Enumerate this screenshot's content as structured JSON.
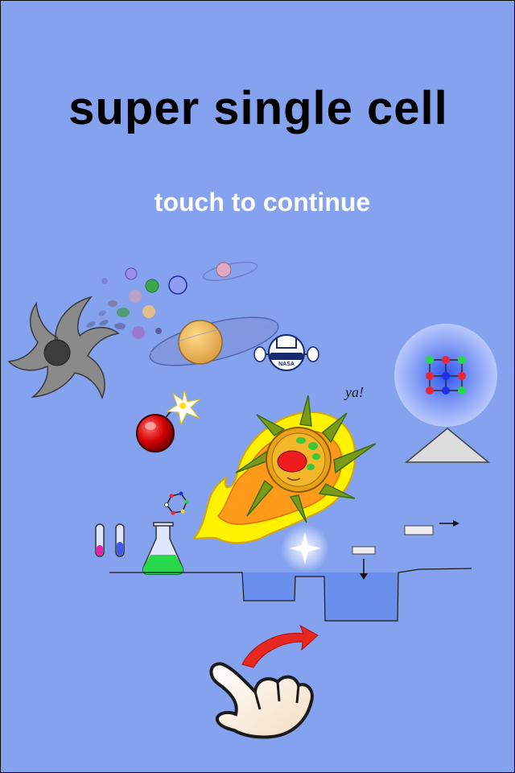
{
  "title": "super single cell",
  "prompt": "touch to continue",
  "labels": {
    "shout": "ya!",
    "agency": "NASA"
  },
  "icons": {
    "galaxy": "spiral-galaxy-icon",
    "planet": "ringed-planet-icon",
    "satellite": "satellite-icon",
    "bomb": "bomb-icon",
    "cell": "flaming-cell-icon",
    "molecule": "benzene-molecule-icon",
    "lattice": "crystal-lattice-icon",
    "prism": "triangle-icon",
    "test_tubes": "test-tubes-icon",
    "flask": "flask-icon",
    "sparkle": "sparkle-icon",
    "hand": "swipe-hand-icon"
  },
  "colors": {
    "background": "#85a2ee",
    "title": "#000000",
    "prompt": "#ffffff",
    "water": "#6b8fed",
    "swipe_arrow": "#e8281f"
  }
}
